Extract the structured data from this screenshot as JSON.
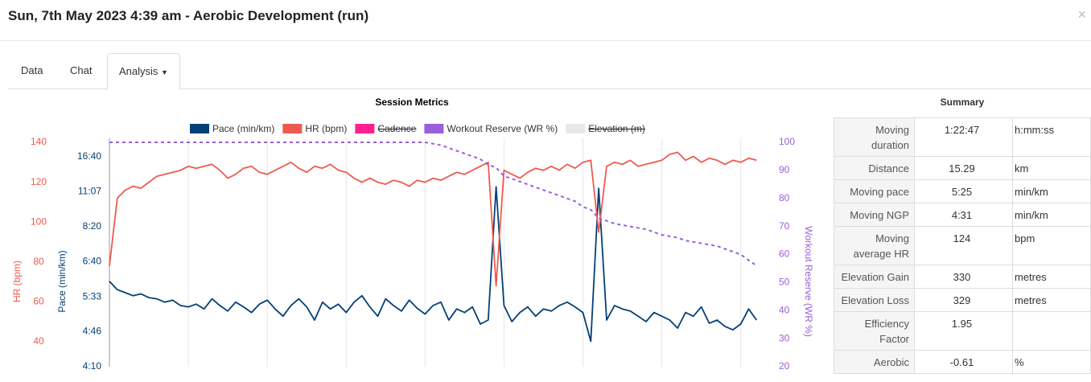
{
  "header": {
    "title": "Sun, 7th May 2023 4:39 am - Aerobic Development (run)",
    "close": "×"
  },
  "tabs": [
    "Data",
    "Chat",
    "Analysis"
  ],
  "chart_data": {
    "type": "line",
    "title": "Session Metrics",
    "x": [
      0,
      60,
      120,
      180,
      240,
      300,
      360,
      420,
      480,
      540,
      600,
      660,
      720,
      780,
      840,
      900,
      960,
      1020,
      1080,
      1140,
      1200,
      1260,
      1320,
      1380,
      1440,
      1500,
      1560,
      1620,
      1680,
      1740,
      1800,
      1860,
      1920,
      1980,
      2040,
      2100,
      2160,
      2220,
      2280,
      2340,
      2400,
      2460,
      2520,
      2580,
      2640,
      2700,
      2760,
      2820,
      2880,
      2940,
      3000,
      3060,
      3120,
      3180,
      3240,
      3300,
      3360,
      3420,
      3480,
      3540,
      3600,
      3660,
      3720,
      3780,
      3840,
      3900,
      3960,
      4020,
      4080,
      4140,
      4200,
      4260,
      4320,
      4380,
      4440,
      4500,
      4560,
      4620,
      4680,
      4740,
      4800,
      4860,
      4920
    ],
    "xlim": [
      0,
      4967
    ],
    "xticks": [
      0,
      600,
      1200,
      1800,
      2400,
      3000,
      3600,
      4200,
      4800
    ],
    "grid": "x",
    "y_label": "HR (bpm)",
    "ylim": [
      27.5,
      140
    ],
    "yticks": [
      40,
      60,
      80,
      100,
      120,
      140
    ],
    "y2_label": "Pace (min/km)",
    "y2_scale": "inverse",
    "y2lim": [
      250,
      1261
    ],
    "y2ticks": [
      {
        "value": 250,
        "label": "4:10"
      },
      {
        "value": 286,
        "label": "4:46"
      },
      {
        "value": 333,
        "label": "5:33"
      },
      {
        "value": 400,
        "label": "6:40"
      },
      {
        "value": 500,
        "label": "8:20"
      },
      {
        "value": 667,
        "label": "11:07"
      },
      {
        "value": 1000,
        "label": "16:40"
      }
    ],
    "y3_label": "Workout Reserve (WR %)",
    "y3lim": [
      20,
      100
    ],
    "y3ticks": [
      20,
      30,
      40,
      50,
      60,
      70,
      80,
      90,
      100
    ],
    "series": [
      {
        "name": "Pace (min/km)",
        "color": "#053f77",
        "axis": "y2",
        "values": [
          360,
          345,
          340,
          335,
          338,
          332,
          330,
          325,
          328,
          320,
          318,
          322,
          315,
          330,
          320,
          312,
          325,
          318,
          310,
          322,
          328,
          315,
          305,
          320,
          330,
          318,
          300,
          325,
          315,
          322,
          310,
          325,
          335,
          318,
          305,
          330,
          320,
          312,
          328,
          316,
          308,
          320,
          325,
          300,
          315,
          310,
          318,
          295,
          300,
          700,
          320,
          298,
          310,
          318,
          305,
          315,
          312,
          320,
          325,
          318,
          310,
          275,
          690,
          300,
          320,
          315,
          312,
          305,
          298,
          310,
          305,
          300,
          290,
          310,
          305,
          318,
          296,
          300,
          292,
          288,
          295,
          315,
          300
        ]
      },
      {
        "name": "HR (bpm)",
        "color": "#ef5a50",
        "axis": "y",
        "values": [
          78,
          112,
          116,
          118,
          117,
          120,
          123,
          124,
          125,
          126,
          128,
          127,
          128,
          129,
          126,
          122,
          124,
          127,
          128,
          125,
          124,
          126,
          128,
          130,
          127,
          125,
          128,
          127,
          129,
          126,
          125,
          122,
          120,
          122,
          120,
          119,
          121,
          120,
          118,
          121,
          120,
          122,
          121,
          123,
          125,
          124,
          126,
          128,
          130,
          68,
          126,
          124,
          122,
          125,
          127,
          126,
          128,
          126,
          129,
          127,
          130,
          131,
          95,
          128,
          130,
          129,
          131,
          128,
          129,
          130,
          131,
          134,
          135,
          131,
          133,
          130,
          132,
          131,
          129,
          131,
          130,
          132,
          131
        ]
      },
      {
        "name": "Cadence",
        "color": "#ff1f8f",
        "visible": false
      },
      {
        "name": "Workout Reserve (WR %)",
        "color": "#9a5fdb",
        "axis": "y3",
        "dashed": true,
        "values": [
          100,
          100,
          100,
          100,
          100,
          100,
          100,
          100,
          100,
          100,
          100,
          100,
          100,
          100,
          100,
          100,
          100,
          100,
          100,
          100,
          100,
          100,
          100,
          100,
          100,
          100,
          100,
          100,
          100,
          100,
          100,
          100,
          100,
          100,
          100,
          100,
          100,
          100,
          100,
          100,
          100,
          99.5,
          99,
          98,
          97,
          96,
          95,
          94,
          92,
          91,
          88,
          87,
          86,
          85,
          84,
          83,
          82,
          81,
          80,
          79,
          77,
          76,
          73,
          72,
          71,
          70.5,
          70,
          69.5,
          69,
          68,
          67,
          66.5,
          66,
          65,
          64.5,
          64,
          63.5,
          63,
          62,
          61,
          60,
          58,
          56
        ]
      },
      {
        "name": "Elevation (m)",
        "color": "#e8e8e8",
        "visible": false
      }
    ]
  },
  "summary": {
    "title": "Summary",
    "rows": [
      {
        "label": "Moving duration",
        "value": "1:22:47",
        "unit": "h:mm:ss"
      },
      {
        "label": "Distance",
        "value": "15.29",
        "unit": "km"
      },
      {
        "label": "Moving pace",
        "value": "5:25",
        "unit": "min/km"
      },
      {
        "label": "Moving NGP",
        "value": "4:31",
        "unit": "min/km"
      },
      {
        "label": "Moving average HR",
        "value": "124",
        "unit": "bpm"
      },
      {
        "label": "Elevation Gain",
        "value": "330",
        "unit": "metres"
      },
      {
        "label": "Elevation Loss",
        "value": "329",
        "unit": "metres"
      },
      {
        "label": "Efficiency Factor",
        "value": "1.95"
      },
      {
        "label": "Aerobic",
        "value": "-0.61",
        "unit": "%"
      }
    ]
  }
}
